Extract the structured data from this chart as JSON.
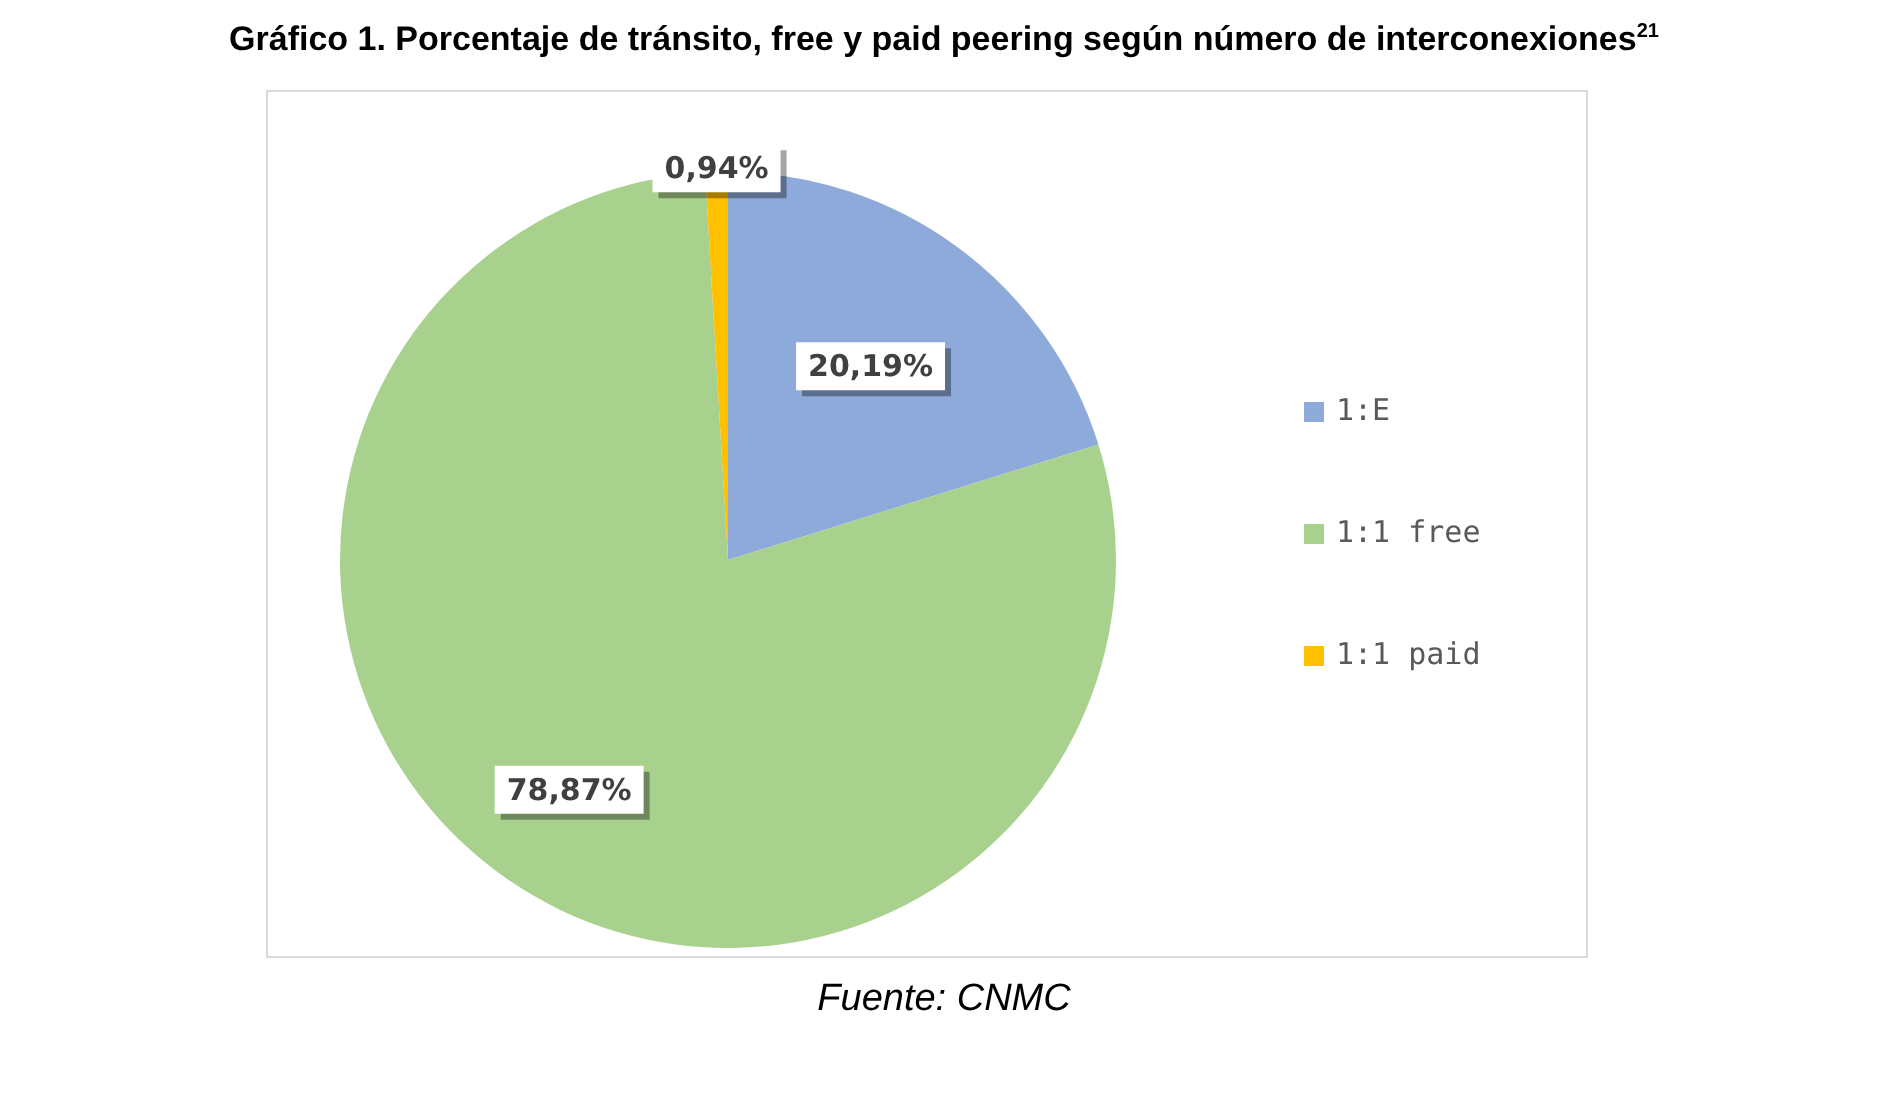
{
  "chart_data": {
    "type": "pie",
    "title": "Gráfico 1. Porcentaje de tránsito, free y paid peering según número de interconexiones$^{21}$",
    "categories": [
      "1:E",
      "1:1 free",
      "1:1 paid"
    ],
    "values": [
      20.19,
      78.87,
      0.94
    ],
    "colors": [
      "#8eaadb",
      "#a9d18e",
      "#ffc000"
    ],
    "value_labels": [
      "20,19%",
      "78,87%",
      "0,94%"
    ],
    "legend": "right",
    "annotations": [
      "Fuente: CNMC"
    ]
  }
}
